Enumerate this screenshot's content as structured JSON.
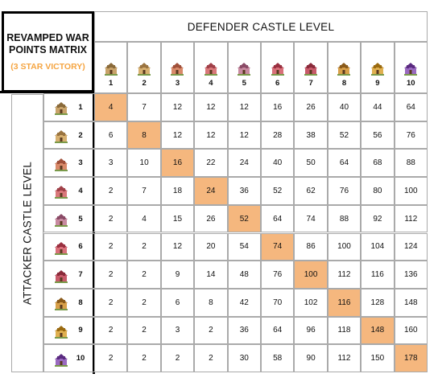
{
  "title": "REVAMPED WAR POINTS MATRIX",
  "subtitle": "(3 STAR VICTORY)",
  "defender_header": "DEFENDER CASTLE LEVEL",
  "attacker_header": "ATTACKER CASTLE LEVEL",
  "levels": [
    "1",
    "2",
    "3",
    "4",
    "5",
    "6",
    "7",
    "8",
    "9",
    "10"
  ],
  "icon": "castle-icon",
  "colors": {
    "highlight": "#f5b77e",
    "subtitle": "#f5a542",
    "grid": "#aaaaaa"
  },
  "matrix": [
    [
      "4",
      "7",
      "12",
      "12",
      "12",
      "16",
      "26",
      "40",
      "44",
      "64"
    ],
    [
      "6",
      "8",
      "12",
      "12",
      "12",
      "28",
      "38",
      "52",
      "56",
      "76"
    ],
    [
      "3",
      "10",
      "16",
      "22",
      "24",
      "40",
      "50",
      "64",
      "68",
      "88"
    ],
    [
      "2",
      "7",
      "18",
      "24",
      "36",
      "52",
      "62",
      "76",
      "80",
      "100"
    ],
    [
      "2",
      "4",
      "15",
      "26",
      "52",
      "64",
      "74",
      "88",
      "92",
      "112"
    ],
    [
      "2",
      "2",
      "12",
      "20",
      "54",
      "74",
      "86",
      "100",
      "104",
      "124"
    ],
    [
      "2",
      "2",
      "9",
      "14",
      "48",
      "76",
      "100",
      "112",
      "116",
      "136"
    ],
    [
      "2",
      "2",
      "6",
      "8",
      "42",
      "70",
      "102",
      "116",
      "128",
      "148"
    ],
    [
      "2",
      "2",
      "3",
      "2",
      "36",
      "64",
      "96",
      "118",
      "148",
      "160"
    ],
    [
      "2",
      "2",
      "2",
      "2",
      "30",
      "58",
      "90",
      "112",
      "150",
      "178"
    ]
  ]
}
